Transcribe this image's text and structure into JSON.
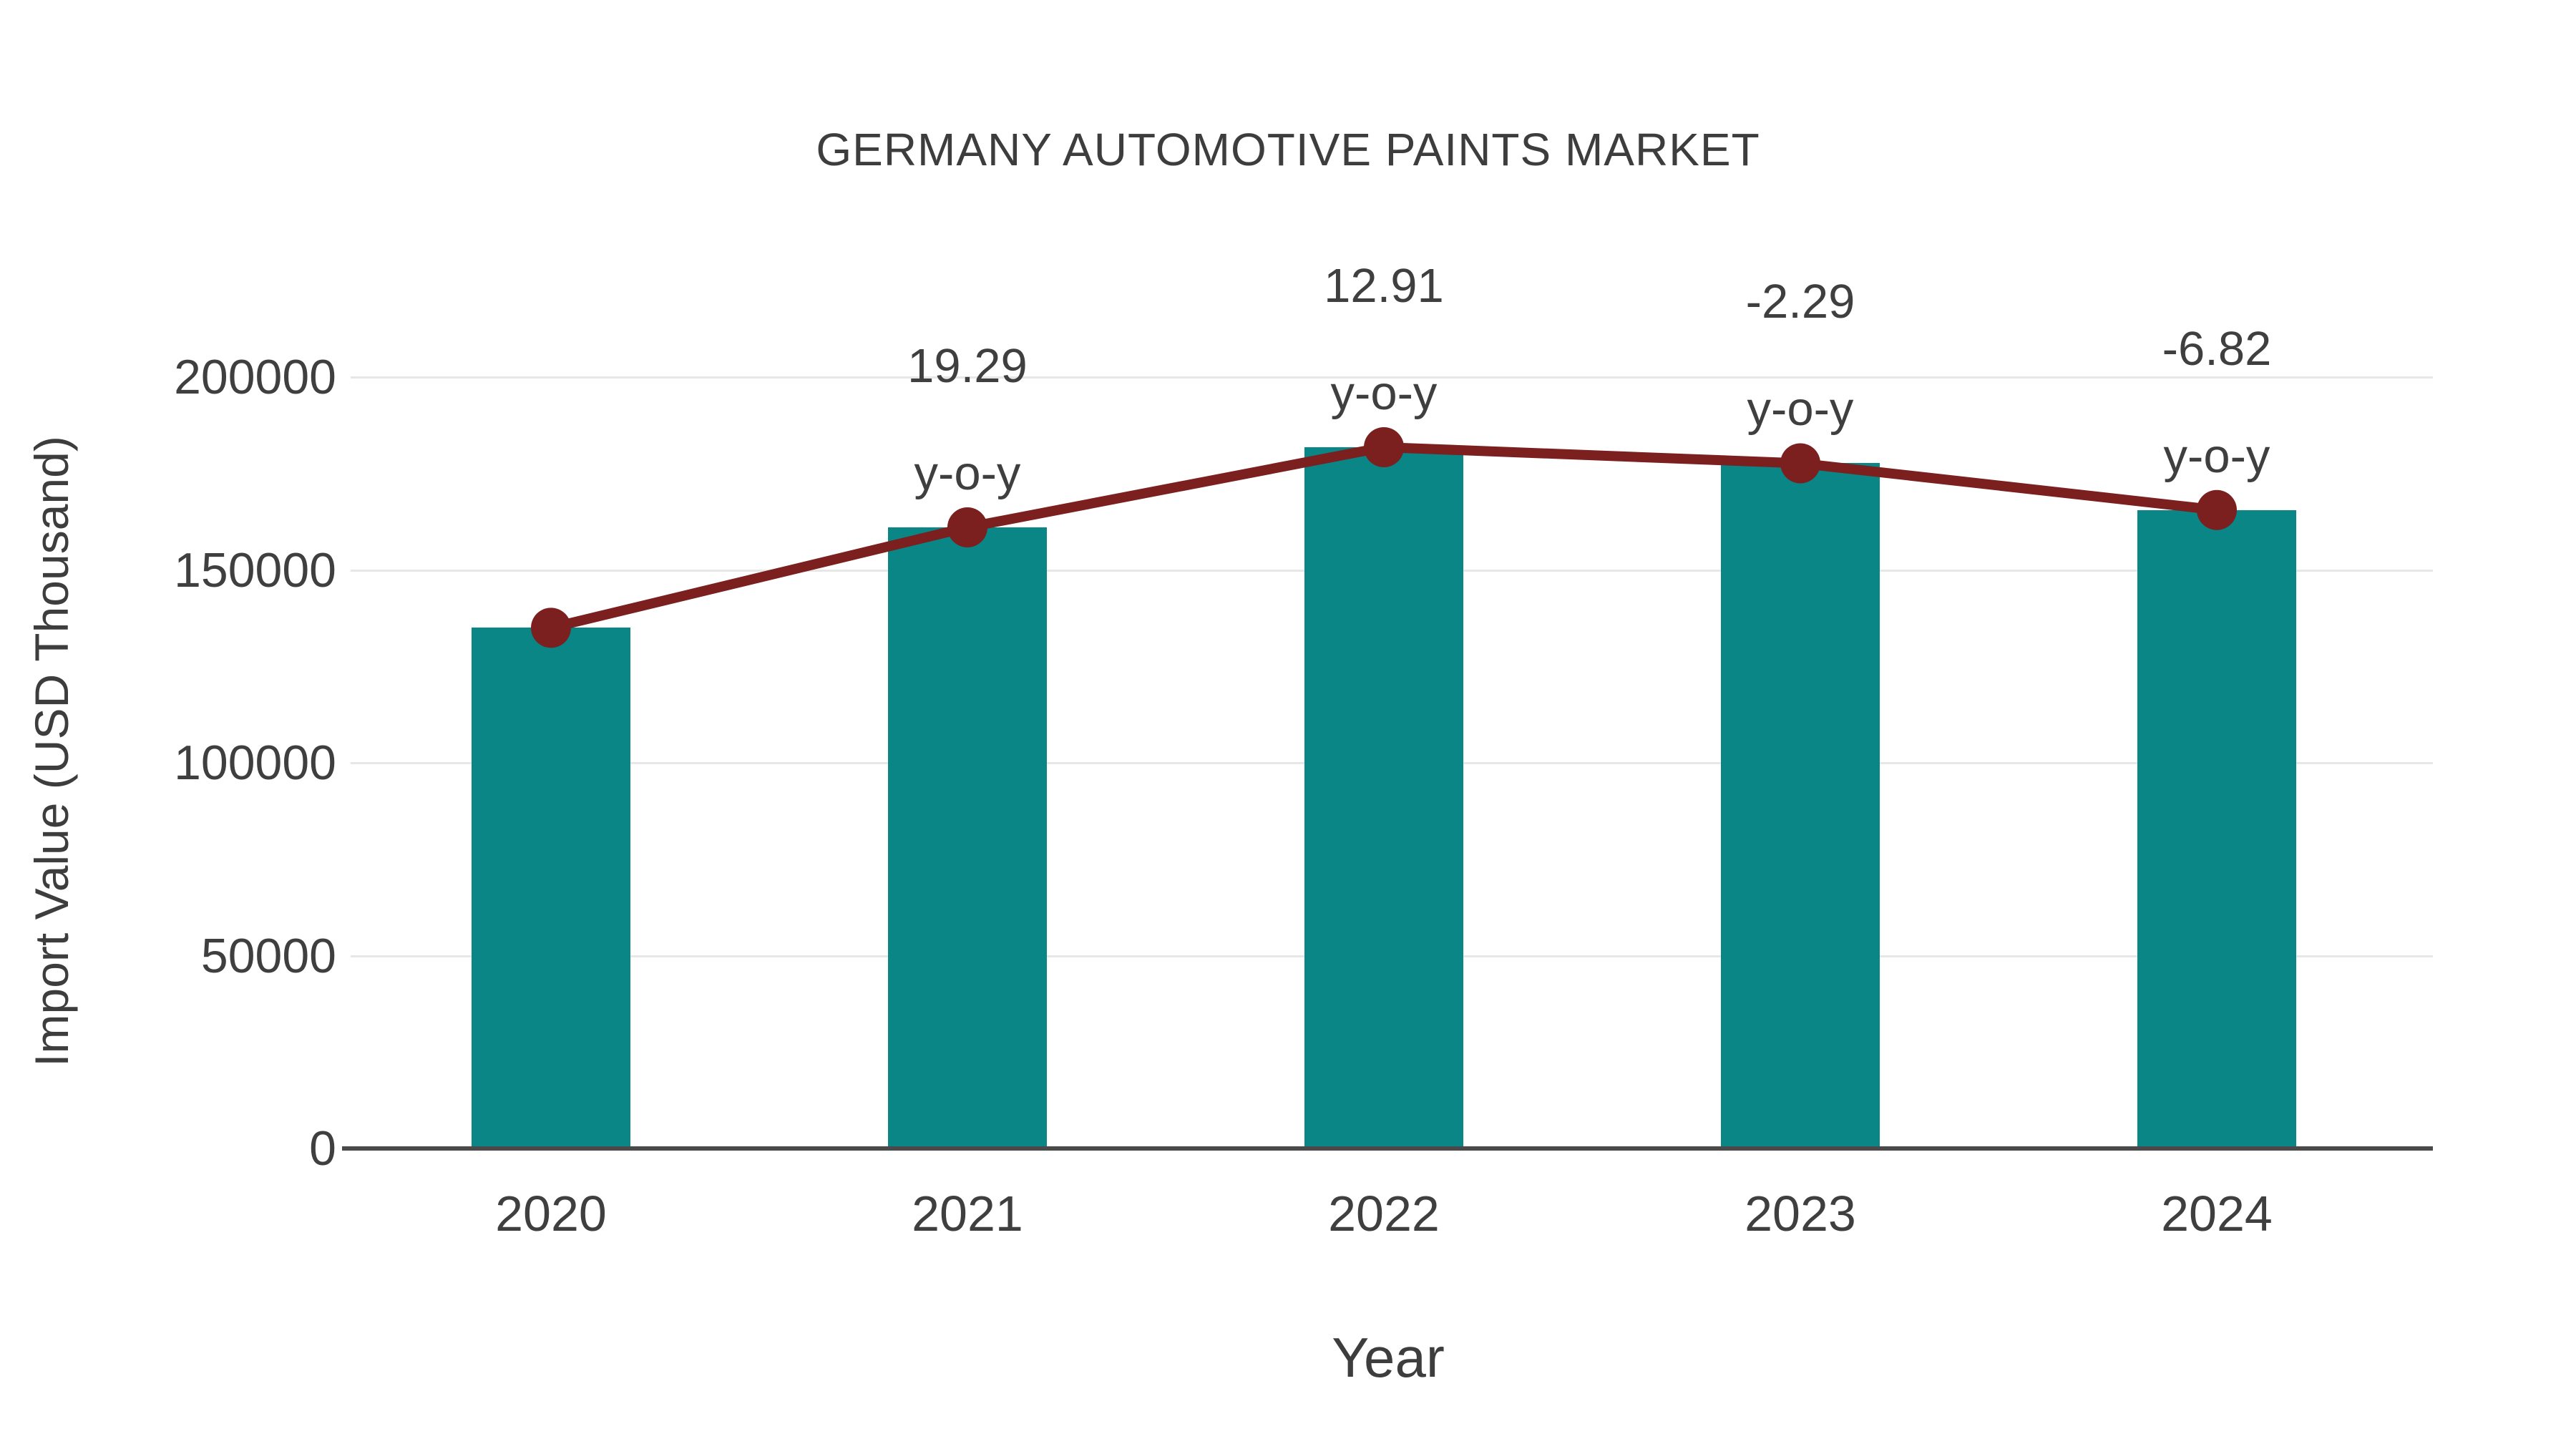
{
  "title": "GERMANY AUTOMOTIVE PAINTS MARKET",
  "chart_data": {
    "type": "bar",
    "title": "GERMANY AUTOMOTIVE PAINTS MARKET",
    "xlabel": "Year",
    "ylabel": "Import Value (USD Thousand)",
    "categories": [
      "2020",
      "2021",
      "2022",
      "2023",
      "2024"
    ],
    "series": [
      {
        "name": "Import Value (USD Thousand)",
        "type": "bar",
        "values": [
          135000,
          161040,
          181820,
          177650,
          165540
        ]
      },
      {
        "name": "y-o-y growth (%)",
        "type": "line",
        "values": [
          null,
          19.29,
          12.91,
          -2.29,
          -6.82
        ]
      }
    ],
    "annotations": [
      {
        "category": "2021",
        "value_text": "19.29",
        "sub_text": "y-o-y"
      },
      {
        "category": "2022",
        "value_text": "12.91",
        "sub_text": "y-o-y"
      },
      {
        "category": "2023",
        "value_text": "-2.29",
        "sub_text": "y-o-y"
      },
      {
        "category": "2024",
        "value_text": "-6.82",
        "sub_text": "y-o-y"
      }
    ],
    "ylim": [
      0,
      200000
    ],
    "yticks": [
      "0",
      "50000",
      "100000",
      "150000",
      "200000"
    ],
    "grid": true,
    "legend_position": "none",
    "colors": {
      "bar": "#0a8686",
      "line": "#7b1f1f",
      "marker": "#7b1f1f",
      "text": "#3f3f3f",
      "grid": "#e7e7e7",
      "axis": "#4a4a4a",
      "background": "#ffffff"
    }
  }
}
